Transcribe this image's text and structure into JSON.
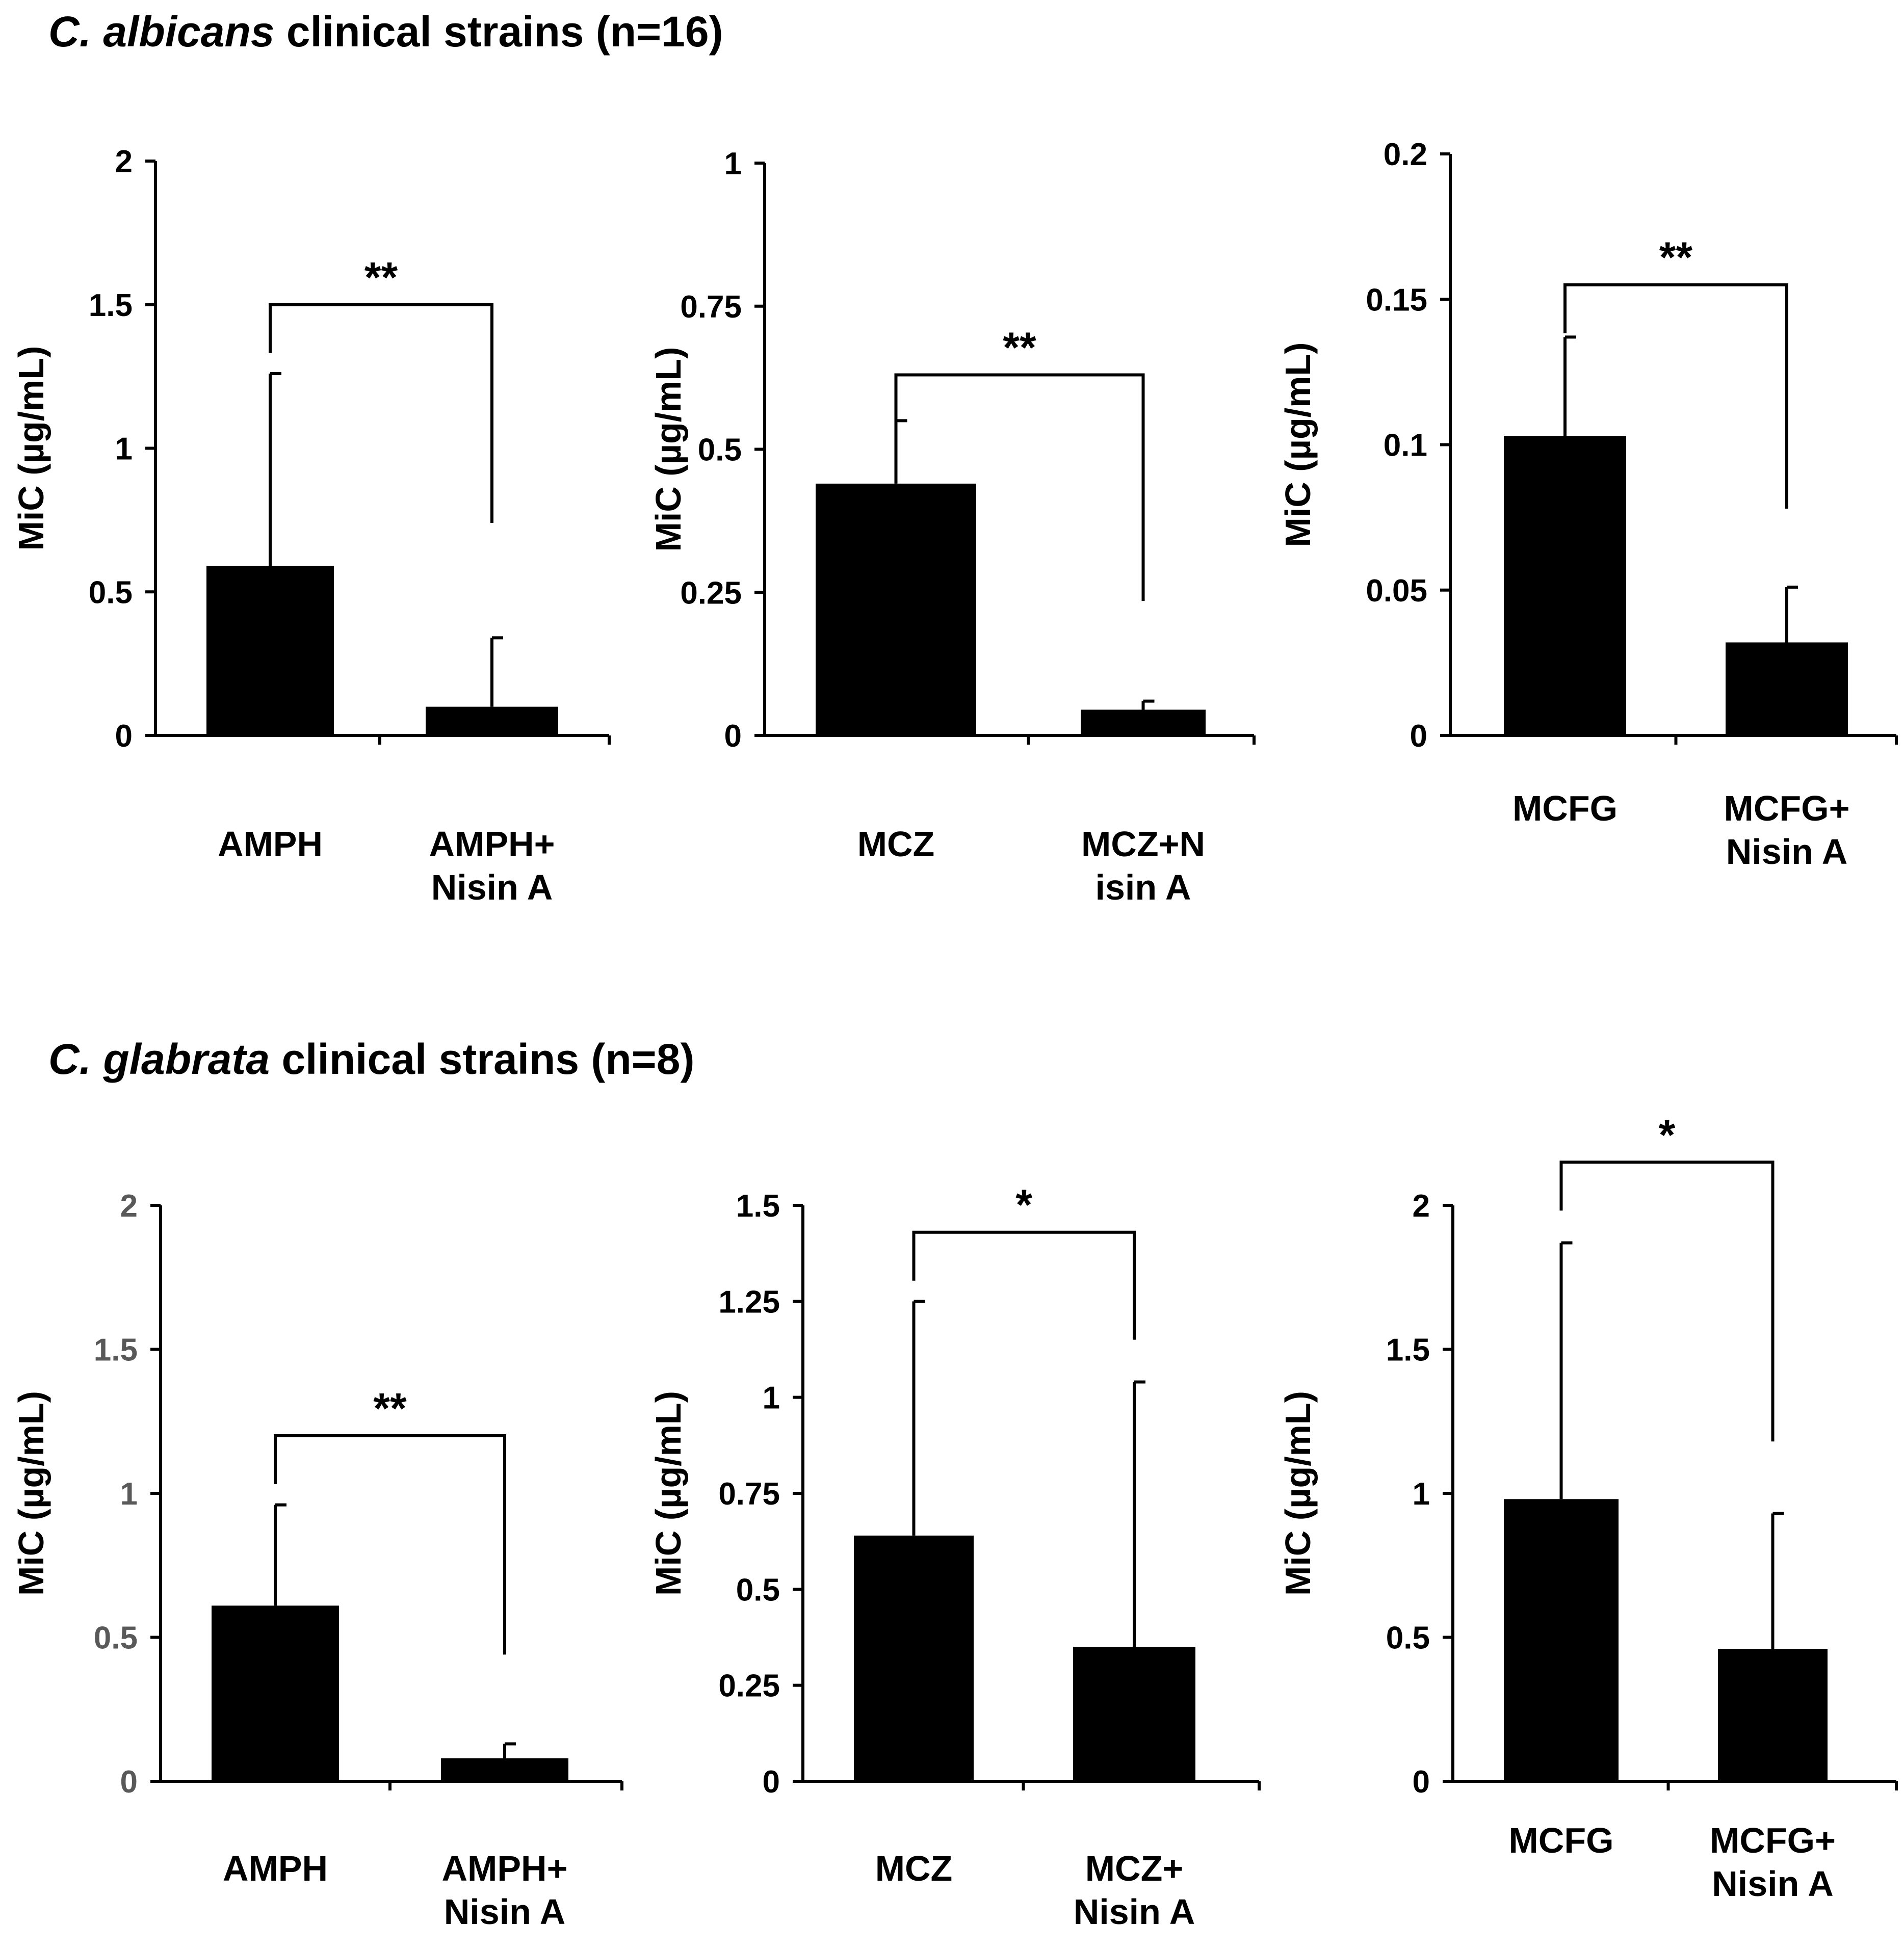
{
  "sections": [
    {
      "title_italic": "C. albicans",
      "title_rest": " clinical strains (n=16)"
    },
    {
      "title_italic": "C. glabrata",
      "title_rest": " clinical strains (n=8)"
    }
  ],
  "chart_data": [
    {
      "type": "bar",
      "section": 0,
      "title": "",
      "ylabel": "MiC (µg/mL)",
      "xlabel": "",
      "ylim": [
        0,
        2
      ],
      "yticks": [
        0,
        0.5,
        1,
        1.5,
        2
      ],
      "tick_labels": [
        "0",
        "0.5",
        "1",
        "1.5",
        "2"
      ],
      "tick_color": "#000000",
      "categories": [
        [
          "AMPH"
        ],
        [
          "AMPH+",
          "Nisin A"
        ]
      ],
      "values": [
        0.59,
        0.1
      ],
      "errors": [
        0.67,
        0.24
      ],
      "significance": "**",
      "bracket": [
        1.5,
        0.74
      ]
    },
    {
      "type": "bar",
      "section": 0,
      "title": "",
      "ylabel": "MiC (µg/mL)",
      "xlabel": "",
      "ylim": [
        0,
        1
      ],
      "yticks": [
        0,
        0.25,
        0.5,
        0.75,
        1
      ],
      "tick_labels": [
        "0",
        "0.25",
        "0.5",
        "0.75",
        "1"
      ],
      "tick_color": "#000000",
      "categories": [
        [
          "MCZ"
        ],
        [
          "MCZ+N",
          "isin A"
        ]
      ],
      "values": [
        0.44,
        0.045
      ],
      "errors": [
        0.11,
        0.015
      ],
      "significance": "**",
      "bracket": [
        0.63,
        0.235
      ]
    },
    {
      "type": "bar",
      "section": 0,
      "title": "",
      "ylabel": "MiC (µg/mL)",
      "xlabel": "",
      "ylim": [
        0,
        0.2
      ],
      "yticks": [
        0,
        0.05,
        0.1,
        0.15,
        0.2
      ],
      "tick_labels": [
        "0",
        "0.05",
        "0.1",
        "0.15",
        "0.2"
      ],
      "tick_color": "#000000",
      "categories": [
        [
          "MCFG"
        ],
        [
          "MCFG+",
          "Nisin A"
        ]
      ],
      "values": [
        0.103,
        0.032
      ],
      "errors": [
        0.034,
        0.019
      ],
      "significance": "**",
      "bracket": [
        0.155,
        0.078
      ]
    },
    {
      "type": "bar",
      "section": 1,
      "title": "",
      "ylabel": "MiC (µg/mL)",
      "xlabel": "",
      "ylim": [
        0,
        2
      ],
      "yticks": [
        0,
        0.5,
        1,
        1.5,
        2
      ],
      "tick_labels": [
        "0",
        "0.5",
        "1",
        "1.5",
        "2"
      ],
      "tick_color": "#595959",
      "categories": [
        [
          "AMPH"
        ],
        [
          "AMPH+",
          "Nisin A"
        ]
      ],
      "values": [
        0.61,
        0.08
      ],
      "errors": [
        0.35,
        0.05
      ],
      "significance": "**",
      "bracket": [
        1.2,
        0.44
      ]
    },
    {
      "type": "bar",
      "section": 1,
      "title": "",
      "ylabel": "MiC (µg/mL)",
      "xlabel": "",
      "ylim": [
        0,
        1.5
      ],
      "yticks": [
        0,
        0.25,
        0.5,
        0.75,
        1,
        1.25,
        1.5
      ],
      "tick_labels": [
        "0",
        "0.25",
        "0.5",
        "0.75",
        "1",
        "1.25",
        "1.5"
      ],
      "tick_color": "#000000",
      "categories": [
        [
          "MCZ"
        ],
        [
          "MCZ+",
          "Nisin A"
        ]
      ],
      "values": [
        0.64,
        0.35
      ],
      "errors": [
        0.61,
        0.69
      ],
      "significance": "*",
      "bracket": [
        1.43,
        1.15
      ]
    },
    {
      "type": "bar",
      "section": 1,
      "title": "",
      "ylabel": "MiC (µg/mL)",
      "xlabel": "",
      "ylim": [
        0,
        2
      ],
      "yticks": [
        0,
        0.5,
        1,
        1.5,
        2
      ],
      "tick_labels": [
        "0",
        "0.5",
        "1",
        "1.5",
        "2"
      ],
      "tick_color": "#000000",
      "categories": [
        [
          "MCFG"
        ],
        [
          "MCFG+",
          "Nisin A"
        ]
      ],
      "values": [
        0.98,
        0.46
      ],
      "errors": [
        0.89,
        0.47
      ],
      "significance": "*",
      "bracket": [
        2.15,
        1.18
      ]
    }
  ]
}
